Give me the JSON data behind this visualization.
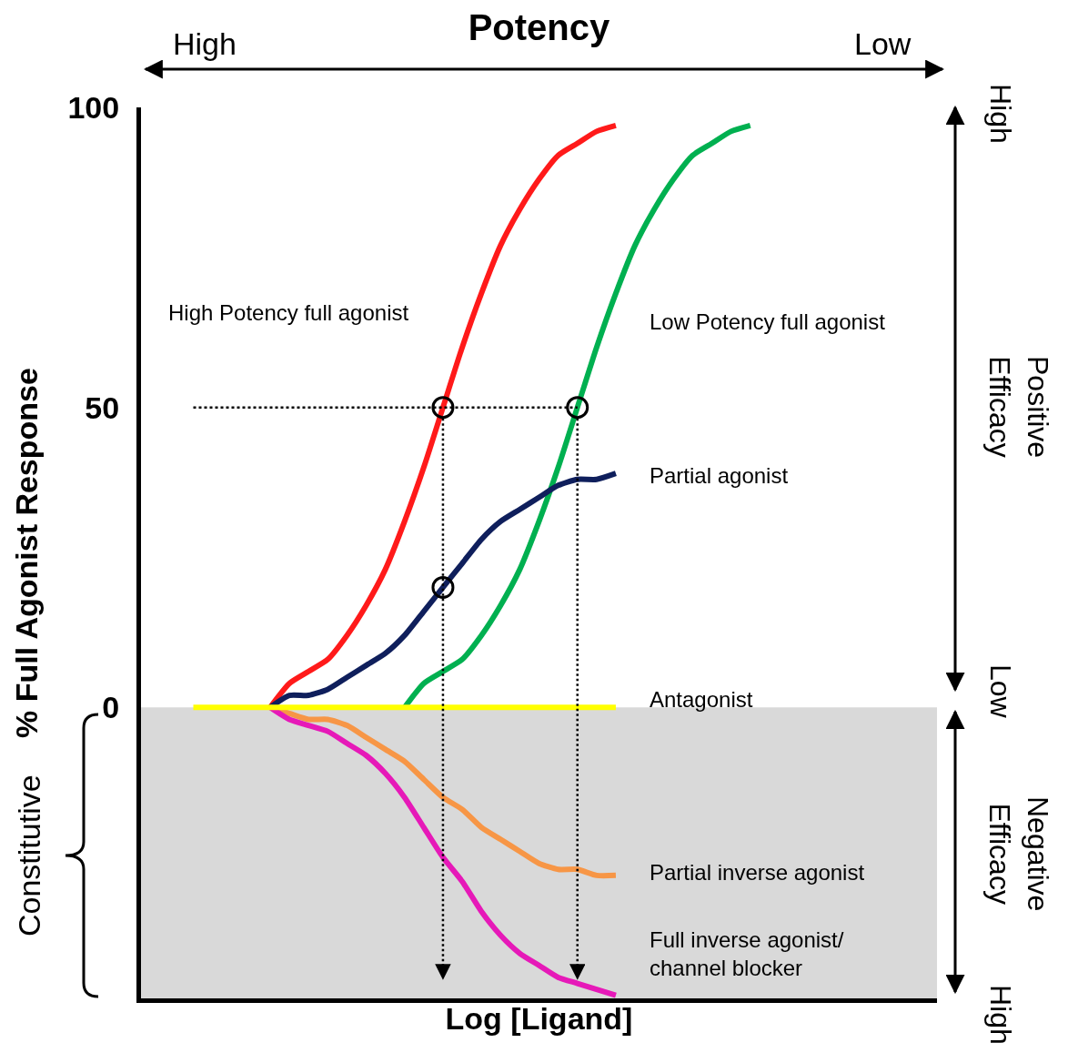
{
  "chart_data": {
    "type": "line",
    "title": "Potency",
    "xlabel": "Log [Ligand]",
    "ylabel": "% Full Agonist Response",
    "categories": [
      null,
      null,
      null,
      null,
      null,
      null,
      null,
      null,
      null,
      null,
      null,
      null,
      null,
      null,
      null,
      null,
      null,
      null,
      null,
      null,
      null,
      null,
      null,
      null,
      null,
      null,
      null,
      null,
      null,
      null,
      null,
      null,
      null,
      null,
      null,
      null,
      null
    ],
    "series": [
      {
        "name": "High Potency full agonist",
        "color": "#ff1a1a",
        "values": [
          null,
          null,
          null,
          null,
          0,
          4,
          6,
          8,
          12,
          17,
          23,
          31,
          40,
          50,
          60,
          69,
          77,
          83,
          88,
          92,
          94,
          96,
          97,
          null,
          null,
          null,
          null,
          null,
          null,
          null,
          null,
          null,
          null,
          null,
          null,
          null,
          null
        ]
      },
      {
        "name": "Low Potency full agonist",
        "color": "#00b050",
        "values": [
          null,
          null,
          null,
          null,
          null,
          null,
          null,
          null,
          null,
          null,
          null,
          0,
          4,
          6,
          8,
          12,
          17,
          23,
          31,
          40,
          50,
          60,
          69,
          77,
          83,
          88,
          92,
          94,
          96,
          97,
          null,
          null,
          null,
          null,
          null,
          null,
          null
        ]
      },
      {
        "name": "Partial agonist",
        "color": "#0f1f5c",
        "values": [
          null,
          null,
          null,
          null,
          0,
          2,
          2,
          3,
          5,
          7,
          9,
          12,
          16,
          20,
          24,
          28,
          31,
          33,
          35,
          37,
          38,
          38,
          39,
          null,
          null,
          null,
          null,
          null,
          null,
          null,
          null,
          null,
          null,
          null,
          null,
          null,
          null
        ]
      },
      {
        "name": "Partial inverse agonist",
        "color": "#f79646",
        "values": [
          null,
          null,
          null,
          null,
          0,
          -1,
          -2,
          -2,
          -3,
          -5,
          -7,
          -9,
          -12,
          -15,
          -17,
          -20,
          -22,
          -24,
          -26,
          -27,
          -27,
          -28,
          -28,
          null,
          null,
          null,
          null,
          null,
          null,
          null,
          null,
          null,
          null,
          null,
          null,
          null,
          null
        ]
      },
      {
        "name": "Full inverse agonist/\nchannel blocker",
        "color": "#e619b8",
        "values": [
          null,
          null,
          null,
          null,
          0,
          -2,
          -3,
          -4,
          -6,
          -8,
          -11,
          -15,
          -20,
          -25,
          -29,
          -34,
          -38,
          -41,
          -43,
          -45,
          -46,
          -47,
          -48,
          null,
          null,
          null,
          null,
          null,
          null,
          null,
          null,
          null,
          null,
          null,
          null,
          null,
          null
        ]
      },
      {
        "name": "Antagonist",
        "color": "#ffff00",
        "values": [
          0,
          0,
          0,
          0,
          0,
          0,
          0,
          0,
          0,
          0,
          0,
          0,
          0,
          0,
          0,
          0,
          0,
          0,
          0,
          0,
          0,
          0,
          0,
          null,
          null,
          null,
          null,
          null,
          null,
          null,
          null,
          null,
          null,
          null,
          null,
          null,
          null
        ]
      },
      {
        "type": "scatter",
        "marker": "circle",
        "color": "#000000",
        "values": [
          null,
          null,
          null,
          null,
          null,
          null,
          null,
          null,
          null,
          null,
          null,
          null,
          null,
          50,
          null,
          null,
          null,
          null,
          null,
          null,
          50,
          null,
          null,
          null,
          null,
          null,
          null,
          null,
          null,
          null,
          null,
          null,
          null,
          null,
          null,
          null,
          null
        ]
      },
      {
        "type": "scatter",
        "marker": "circle",
        "color": "#000000",
        "values": [
          null,
          null,
          null,
          null,
          null,
          null,
          null,
          null,
          null,
          null,
          null,
          null,
          null,
          20,
          null,
          null,
          null,
          null,
          null,
          null,
          null,
          null,
          null,
          null,
          null,
          null,
          null,
          null,
          null,
          null,
          null,
          null,
          null,
          null,
          null,
          null,
          null
        ]
      }
    ],
    "ylim": [
      -48.5,
      100
    ],
    "yticks": [
      0,
      50,
      100
    ],
    "tick_labels": "y",
    "grid": false,
    "legend": false,
    "marker": "none",
    "line_style": "solid",
    "ref_lines": [
      {
        "axis": "y",
        "value": 50,
        "line_style": "dotted"
      }
    ],
    "bands": [
      {
        "axis": "y",
        "from": -48.5,
        "to": 0,
        "color": "#d9d9d9"
      }
    ],
    "annotations": [
      "High",
      "Low",
      "High",
      "Positive\nEfficacy",
      "Low",
      "Negative\nEfficacy",
      "High",
      "Constitutive"
    ]
  }
}
